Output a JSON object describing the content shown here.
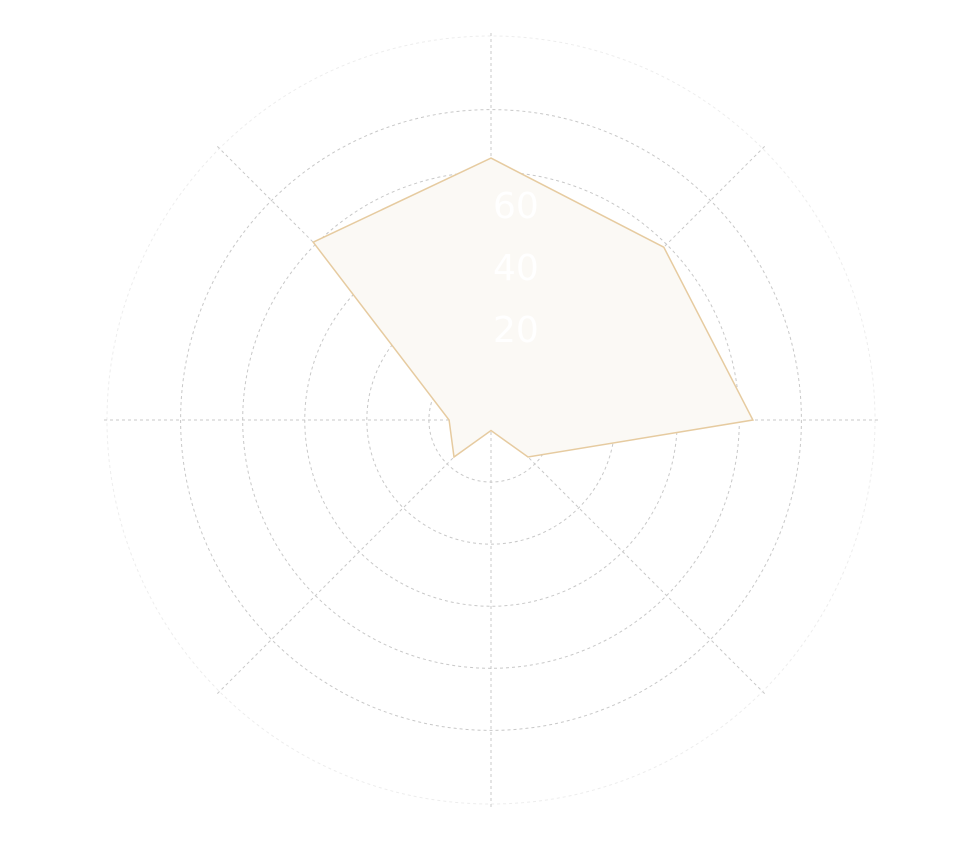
{
  "chart_data": {
    "type": "radar",
    "title": "",
    "axes_count": 8,
    "radial_range": [
      0,
      100
    ],
    "radial_ticks": [
      20,
      40,
      60,
      80,
      100
    ],
    "radial_tick_labels": [
      {
        "value": 20,
        "label": "20"
      },
      {
        "value": 40,
        "label": "40"
      },
      {
        "value": 60,
        "label": "60"
      }
    ],
    "grid": true,
    "legend": "none",
    "series": [
      {
        "values": [
          75,
          70,
          75,
          15,
          3,
          15,
          12,
          72
        ]
      }
    ]
  },
  "colors": {
    "grid": "#c8c8c8",
    "outer_circle": "#ededed",
    "series_stroke": "#e6cba0",
    "series_fill": "#fbf9f5",
    "tick_label": "#ffffff"
  }
}
